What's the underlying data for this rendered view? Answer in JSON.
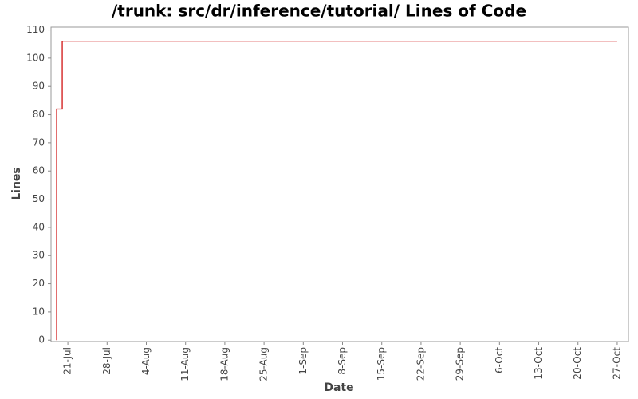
{
  "chart_data": {
    "type": "line",
    "title": "/trunk: src/dr/inference/tutorial/ Lines of Code",
    "x_label": "Date",
    "y_label": "Lines",
    "x": [
      "19-Jul",
      "19-Jul",
      "20-Jul",
      "20-Jul",
      "27-Oct"
    ],
    "values": [
      0,
      82,
      82,
      106,
      106
    ],
    "color": "#cc0000",
    "xlim": [
      "18-Jul",
      "29-Oct"
    ],
    "xticks": [
      "21-Jul",
      "28-Jul",
      "4-Aug",
      "11-Aug",
      "18-Aug",
      "25-Aug",
      "1-Sep",
      "8-Sep",
      "15-Sep",
      "22-Sep",
      "29-Sep",
      "6-Oct",
      "13-Oct",
      "20-Oct",
      "27-Oct"
    ],
    "ylim": [
      -0.5,
      111
    ],
    "yticks": [
      0,
      10,
      20,
      30,
      40,
      50,
      60,
      70,
      80,
      90,
      100,
      110
    ],
    "grid": false
  }
}
